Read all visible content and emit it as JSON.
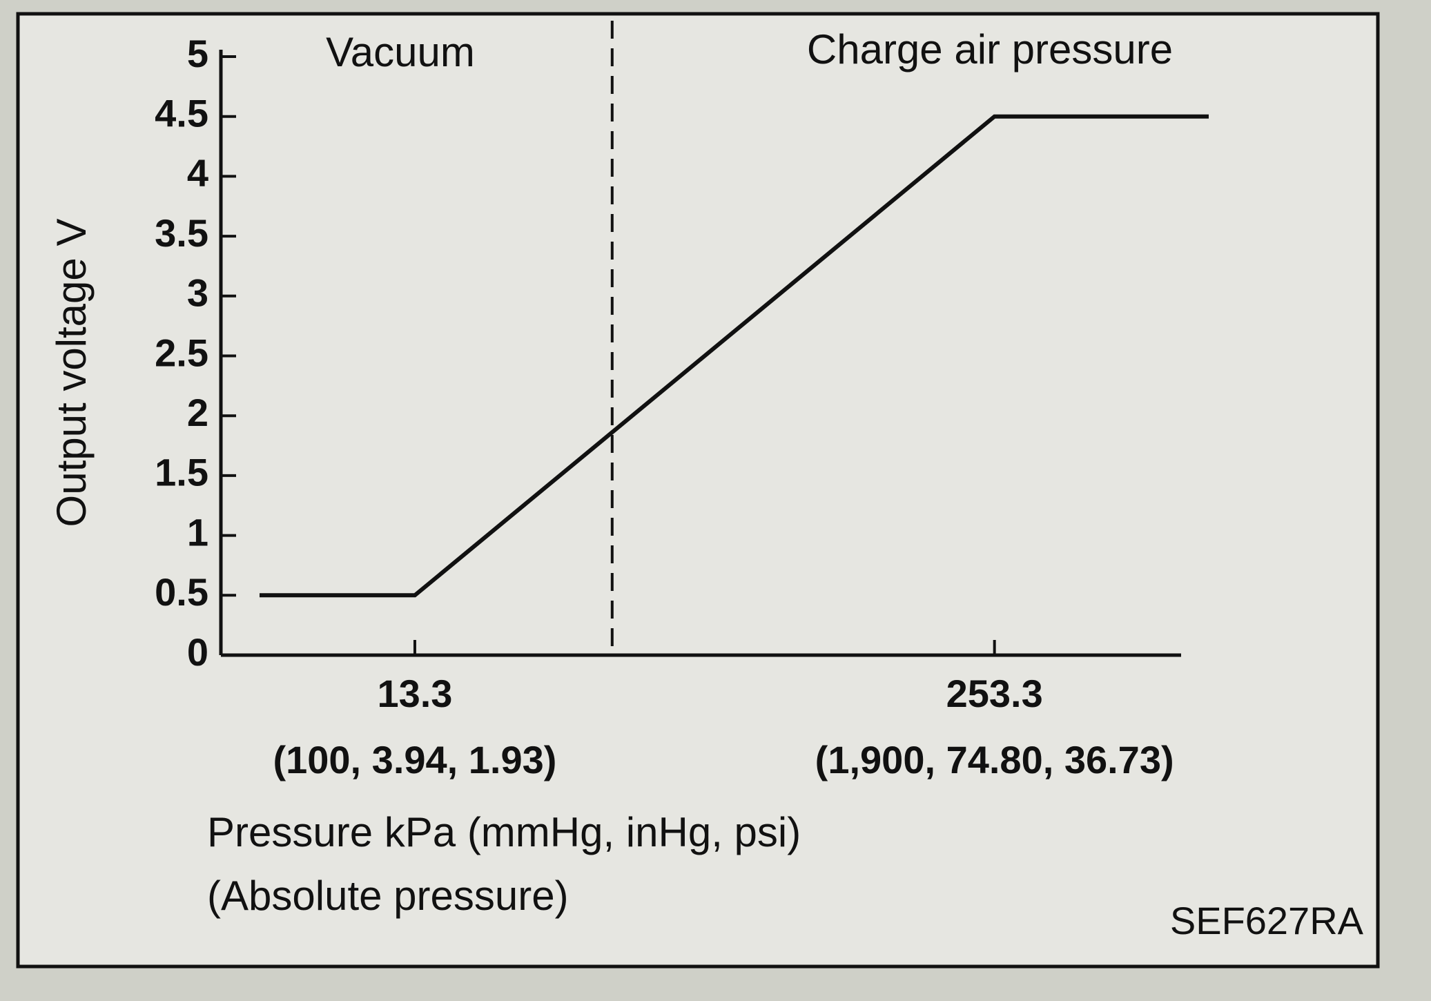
{
  "chart_data": {
    "type": "line",
    "region_labels": [
      "Vacuum",
      "Charge air pressure"
    ],
    "y_label": "Output voltage V",
    "x_label_lines": [
      "Pressure kPa (mmHg, inHg, psi)",
      "(Absolute pressure)"
    ],
    "code": "SEF627RA",
    "x": [
      -51,
      13.3,
      253.3,
      342
    ],
    "values": [
      0.5,
      0.5,
      4.5,
      4.5
    ],
    "color": "#111111",
    "divider_x": 95,
    "xlim": [
      -67,
      342
    ],
    "ylim": [
      0,
      5
    ],
    "xticks": [
      13.3,
      253.3
    ],
    "xtick_sublabels": [
      "(100, 3.94, 1.93)",
      "(1,900, 74.80, 36.73)"
    ],
    "yticks": [
      0,
      0.5,
      1,
      1.5,
      2,
      2.5,
      3,
      3.5,
      4,
      4.5,
      5
    ],
    "grid": false
  }
}
